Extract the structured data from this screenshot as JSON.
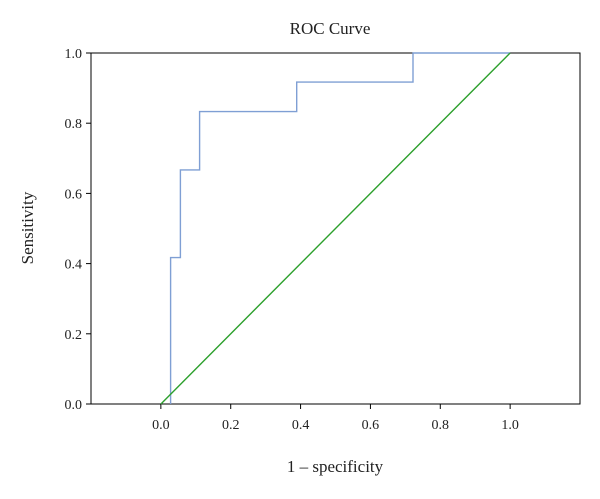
{
  "chart_data": {
    "type": "line",
    "title": "ROC Curve",
    "xlabel": "1 – specificity",
    "ylabel": "Sensitivity",
    "xlim": [
      -0.2,
      1.2
    ],
    "ylim": [
      0,
      1
    ],
    "x_ticks": [
      "0.0",
      "0.2",
      "0.4",
      "0.6",
      "0.8",
      "1.0"
    ],
    "y_ticks": [
      "0.0",
      "0.2",
      "0.4",
      "0.6",
      "0.8",
      "1.0"
    ],
    "grid": false,
    "series": [
      {
        "color": "#7f9fd4",
        "style": "step",
        "x": [
          0.028,
          0.028,
          0.056,
          0.056,
          0.111,
          0.111,
          0.389,
          0.389,
          0.722,
          0.722,
          1.0
        ],
        "y": [
          0.0,
          0.417,
          0.417,
          0.667,
          0.667,
          0.833,
          0.833,
          0.917,
          0.917,
          1.0,
          1.0
        ]
      },
      {
        "color": "#2ca02c",
        "style": "line",
        "x": [
          0.0,
          1.0
        ],
        "y": [
          0.0,
          1.0
        ]
      }
    ]
  }
}
